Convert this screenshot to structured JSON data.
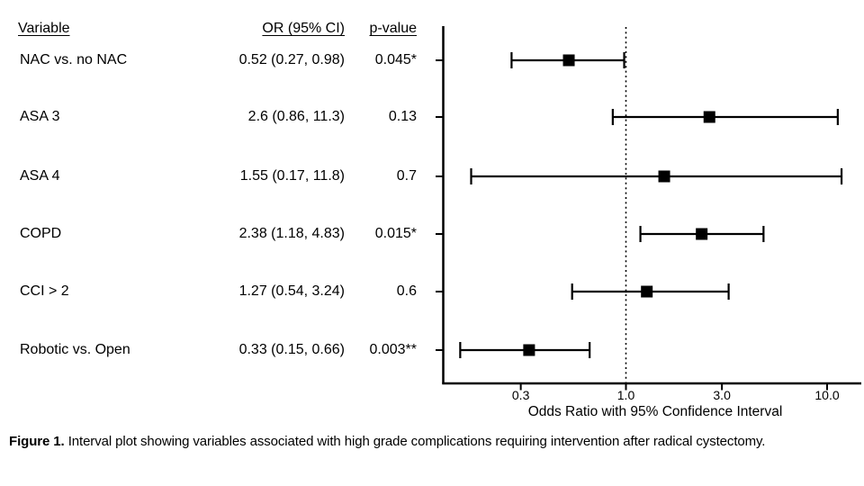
{
  "table": {
    "headers": {
      "variable": "Variable",
      "or_ci": "OR (95% CI)",
      "p_value": "p-value"
    }
  },
  "chart_data": {
    "type": "scatter",
    "subtype": "forest-plot",
    "title": "",
    "xlabel": "Odds Ratio with 95% Confidence Interval",
    "ylabel": "",
    "x_scale": "log",
    "x_tick_labels": [
      "0.3",
      "1.0",
      "3.0",
      "10.0"
    ],
    "x_tick_values": [
      0.3,
      1.0,
      3.0,
      10.0
    ],
    "reference_line": 1.0,
    "axis_range": [
      0.12,
      15
    ],
    "grid": "off",
    "marker": "filled-black-square",
    "rows": [
      {
        "label": "NAC vs. no NAC",
        "or": 0.52,
        "ci_low": 0.27,
        "ci_high": 0.98,
        "or_ci_text": "0.52 (0.27, 0.98)",
        "p_value": "0.045*"
      },
      {
        "label": "ASA 3",
        "or": 2.6,
        "ci_low": 0.86,
        "ci_high": 11.3,
        "or_ci_text": "2.6 (0.86, 11.3)",
        "p_value": "0.13"
      },
      {
        "label": "ASA 4",
        "or": 1.55,
        "ci_low": 0.17,
        "ci_high": 11.8,
        "or_ci_text": "1.55 (0.17, 11.8)",
        "p_value": "0.7"
      },
      {
        "label": "COPD",
        "or": 2.38,
        "ci_low": 1.18,
        "ci_high": 4.83,
        "or_ci_text": "2.38 (1.18, 4.83)",
        "p_value": "0.015*"
      },
      {
        "label": "CCI > 2",
        "or": 1.27,
        "ci_low": 0.54,
        "ci_high": 3.24,
        "or_ci_text": "1.27 (0.54, 3.24)",
        "p_value": "0.6"
      },
      {
        "label": "Robotic vs. Open",
        "or": 0.33,
        "ci_low": 0.15,
        "ci_high": 0.66,
        "or_ci_text": "0.33 (0.15, 0.66)",
        "p_value": "0.003**"
      }
    ]
  },
  "caption": {
    "label": "Figure 1.",
    "text": " Interval plot showing variables associated with high grade complications requiring intervention after radical cystectomy."
  },
  "colors": {
    "ink": "#000000",
    "background": "#ffffff"
  }
}
